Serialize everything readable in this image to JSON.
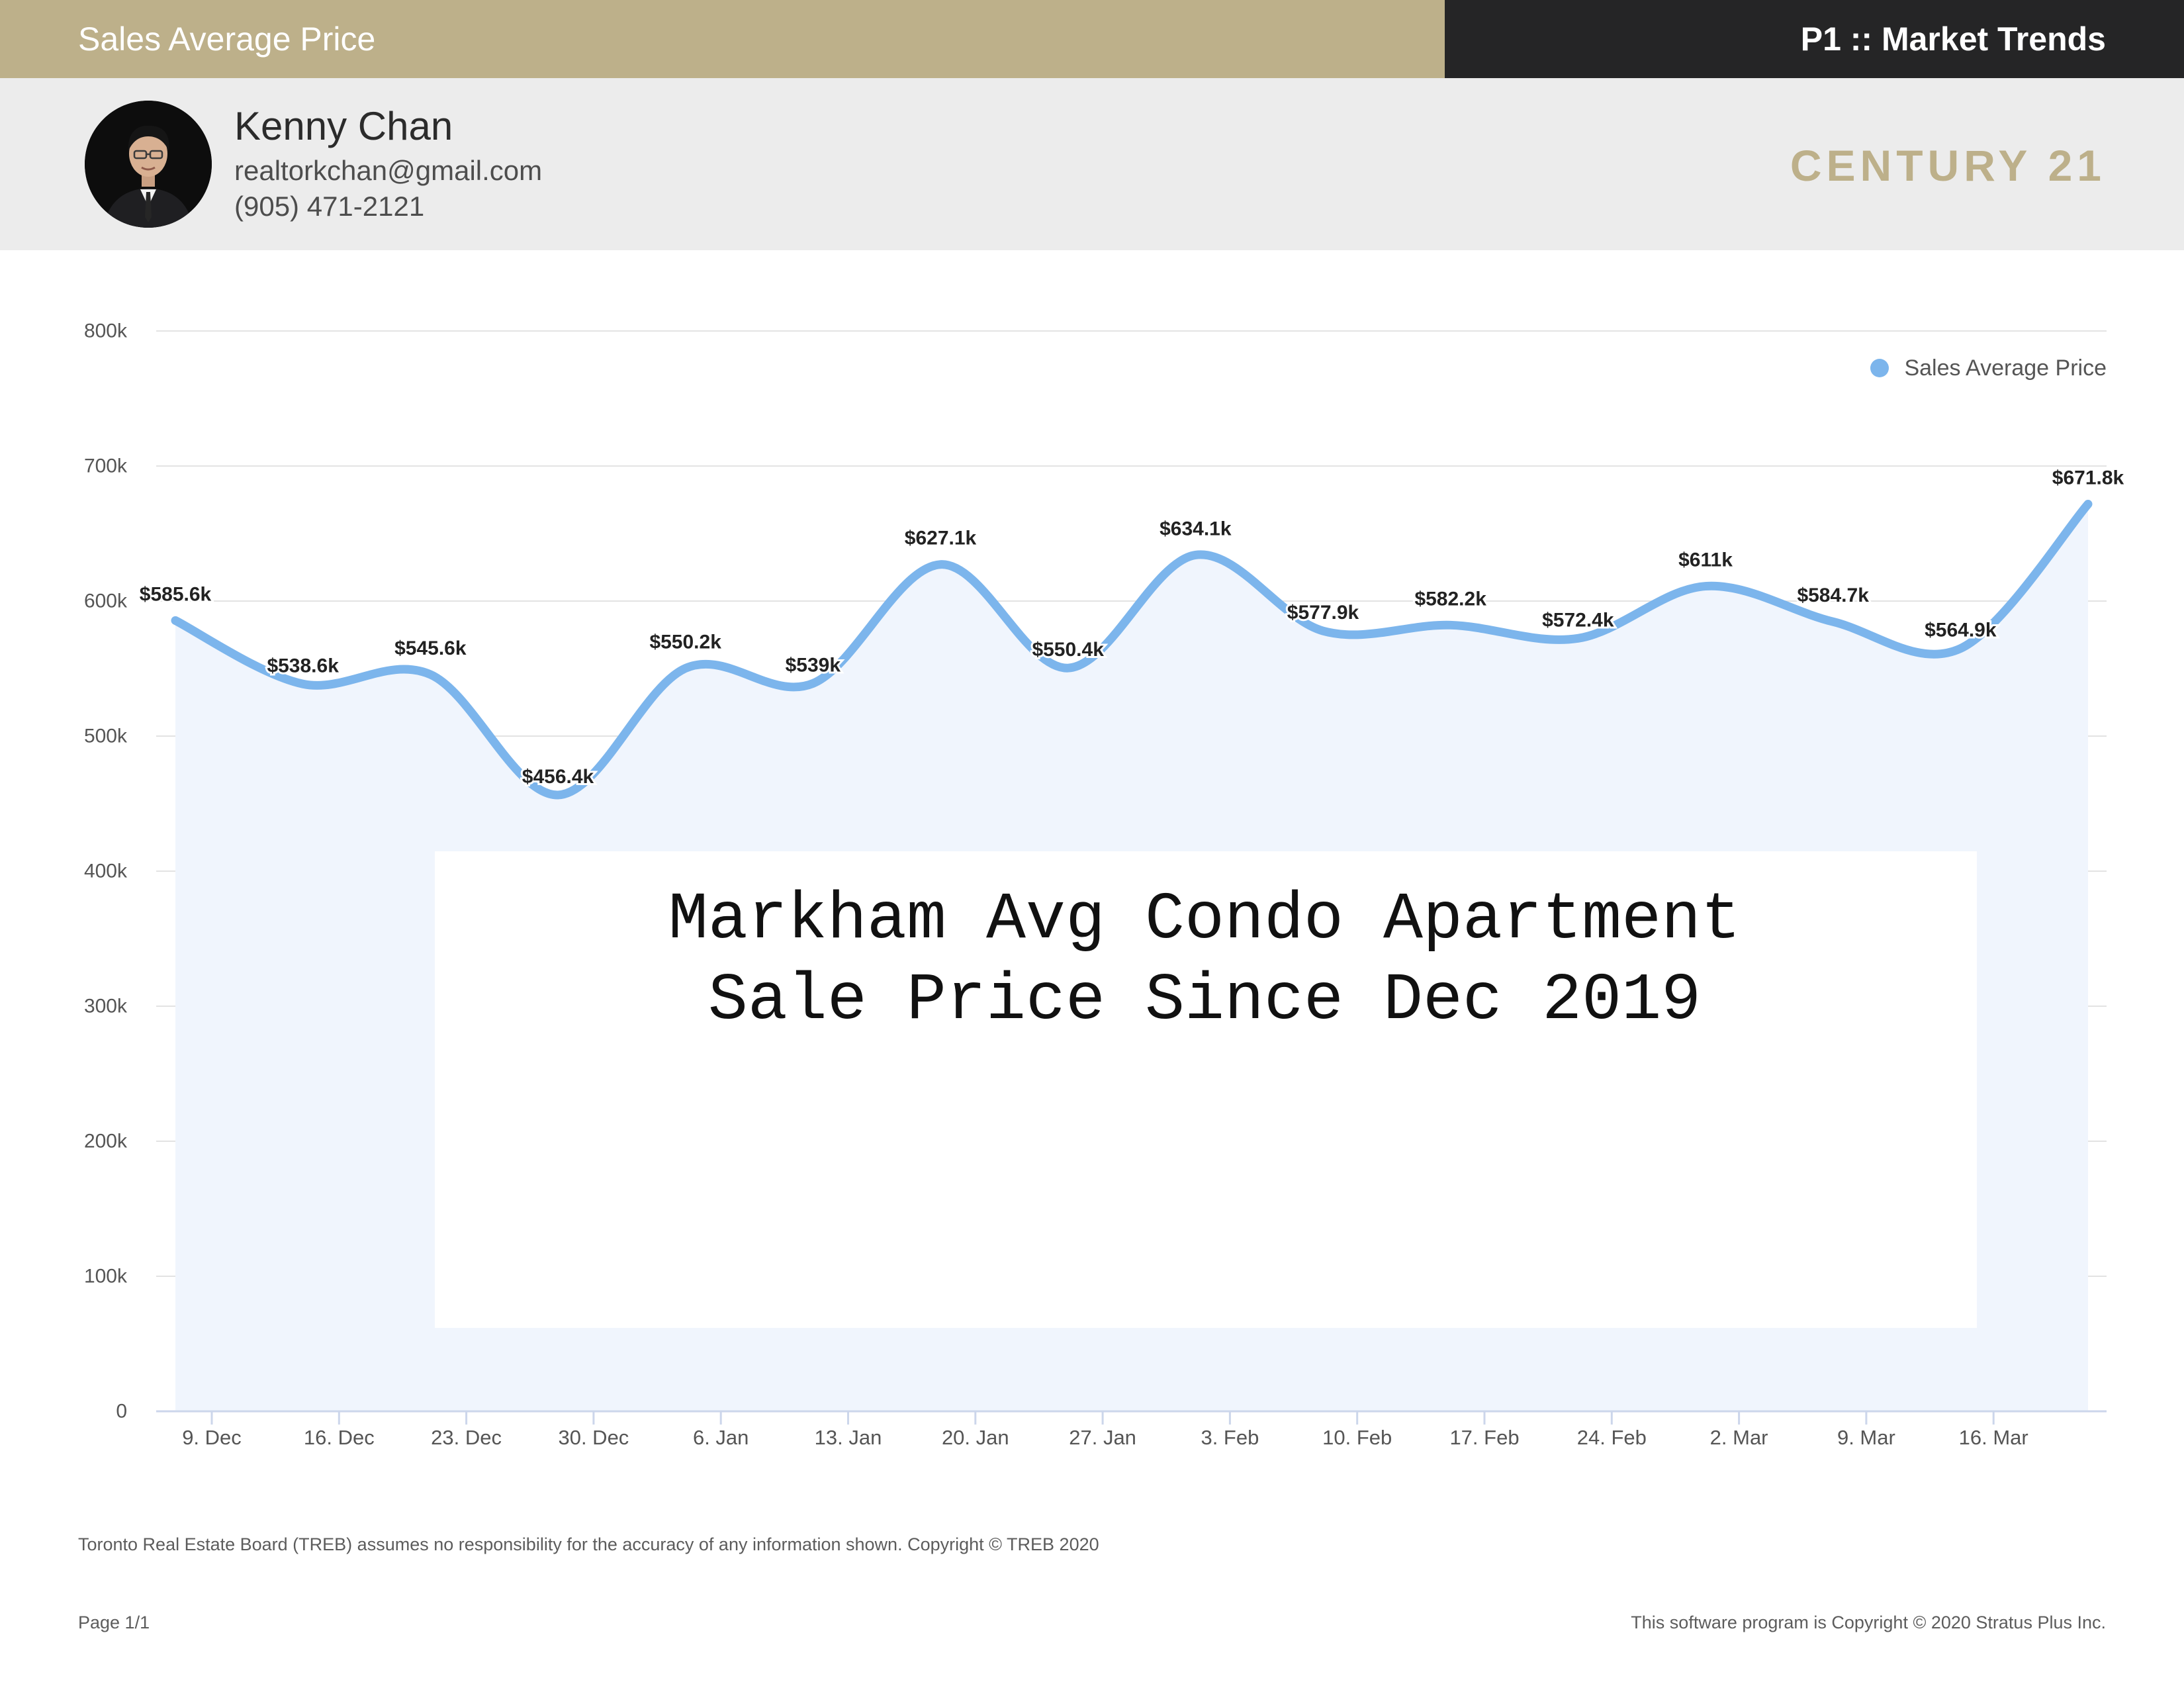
{
  "header": {
    "report_title": "Sales Average Price",
    "section": "P1 :: Market Trends"
  },
  "agent": {
    "name": "Kenny Chan",
    "email": "realtorkchan@gmail.com",
    "phone": "(905) 471-2121",
    "brand": "CENTURY 21"
  },
  "colors": {
    "gold": "#bdb08a",
    "dark": "#252526",
    "band": "#ececec",
    "series": "#7cb5ec",
    "area": "#f0f5fd"
  },
  "chart_data": {
    "type": "line",
    "ylim": [
      0,
      800000
    ],
    "y_ticks": [
      {
        "value": 0,
        "label": "0"
      },
      {
        "value": 100000,
        "label": "100k"
      },
      {
        "value": 200000,
        "label": "200k"
      },
      {
        "value": 300000,
        "label": "300k"
      },
      {
        "value": 400000,
        "label": "400k"
      },
      {
        "value": 500000,
        "label": "500k"
      },
      {
        "value": 600000,
        "label": "600k"
      },
      {
        "value": 700000,
        "label": "700k"
      },
      {
        "value": 800000,
        "label": "800k"
      }
    ],
    "grid": true,
    "legend_position": "top-right",
    "x_tick_labels": [
      "9. Dec",
      "16. Dec",
      "23. Dec",
      "30. Dec",
      "6. Jan",
      "13. Jan",
      "20. Jan",
      "27. Jan",
      "3. Feb",
      "10. Feb",
      "17. Feb",
      "24. Feb",
      "2. Mar",
      "9. Mar",
      "16. Mar"
    ],
    "series": [
      {
        "name": "Sales Average Price",
        "color": "#7cb5ec",
        "values": [
          585600,
          538600,
          545600,
          456400,
          550200,
          539000,
          627100,
          550400,
          634100,
          577900,
          582200,
          572400,
          611000,
          584700,
          564900,
          671800
        ],
        "labels": [
          "$585.6k",
          "$538.6k",
          "$545.6k",
          "$456.4k",
          "$550.2k",
          "$539k",
          "$627.1k",
          "$550.4k",
          "$634.1k",
          "$577.9k",
          "$582.2k",
          "$572.4k",
          "$611k",
          "$584.7k",
          "$564.9k",
          "$671.8k"
        ]
      }
    ]
  },
  "overlay_text": {
    "line1": "Markham Avg Condo Apartment",
    "line2": "Sale Price Since Dec 2019"
  },
  "footer": {
    "disclaimer": "Toronto Real Estate Board (TREB) assumes no responsibility for the accuracy of any information shown. Copyright © TREB 2020",
    "page": "Page 1/1",
    "copyright": "This software program is Copyright © 2020 Stratus Plus Inc."
  }
}
